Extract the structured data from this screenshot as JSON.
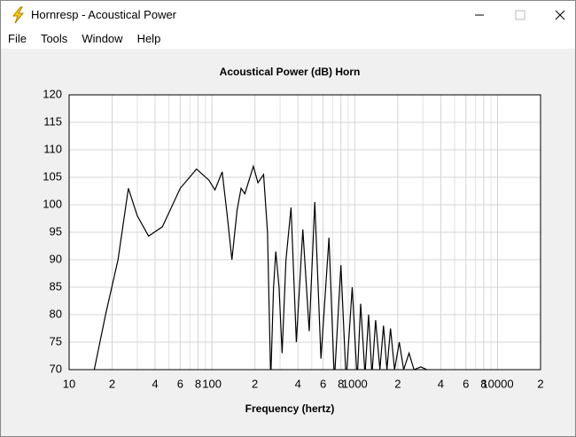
{
  "window": {
    "title": "Hornresp - Acoustical Power",
    "menu": [
      "File",
      "Tools",
      "Window",
      "Help"
    ]
  },
  "chart_data": {
    "type": "line",
    "title": "Acoustical Power (dB)    Horn",
    "xlabel": "Frequency (hertz)",
    "log_x": true,
    "grid": true,
    "x": [
      15,
      18,
      22,
      26,
      30,
      36,
      45,
      60,
      78,
      95,
      105,
      118,
      128,
      138,
      150,
      160,
      170,
      195,
      210,
      230,
      245,
      258,
      270,
      280,
      295,
      310,
      330,
      358,
      390,
      433,
      480,
      525,
      580,
      660,
      720,
      800,
      870,
      960,
      1040,
      1100,
      1180,
      1250,
      1320,
      1400,
      1500,
      1590,
      1680,
      1780,
      1900,
      2050,
      2200,
      2400,
      2600,
      2900,
      3200
    ],
    "series": [
      {
        "name": "Horn",
        "color": "#000000",
        "values": [
          70,
          80,
          90,
          103,
          98,
          94.3,
          96,
          103,
          106.5,
          104.5,
          102.7,
          106,
          98,
          90,
          99,
          103,
          102,
          107,
          104,
          105.5,
          95,
          68,
          85,
          91.5,
          85,
          73,
          90,
          99.5,
          75,
          95.5,
          77,
          100.5,
          72,
          94,
          68,
          89,
          68,
          85,
          68,
          82,
          69,
          80,
          69,
          79,
          70,
          78,
          70,
          77.5,
          70,
          75,
          70,
          73,
          70,
          70.5,
          70
        ]
      }
    ],
    "xlim": [
      10,
      20000
    ],
    "ylim": [
      70,
      120
    ],
    "xticks": [
      10,
      {
        "value": 20,
        "label": "2"
      },
      {
        "value": 40,
        "label": "4"
      },
      {
        "value": 60,
        "label": "6"
      },
      {
        "value": 80,
        "label": "8"
      },
      100,
      {
        "value": 200,
        "label": "2"
      },
      {
        "value": 400,
        "label": "4"
      },
      {
        "value": 600,
        "label": "6"
      },
      {
        "value": 800,
        "label": "8"
      },
      1000,
      {
        "value": 2000,
        "label": "2"
      },
      {
        "value": 4000,
        "label": "4"
      },
      {
        "value": 6000,
        "label": "6"
      },
      {
        "value": 8000,
        "label": "8"
      },
      10000,
      {
        "value": 20000,
        "label": "2"
      }
    ],
    "xminor": [
      30,
      50,
      70,
      90,
      300,
      500,
      700,
      900,
      3000,
      5000,
      7000,
      9000
    ],
    "yticks": [
      70,
      75,
      80,
      85,
      90,
      95,
      100,
      105,
      110,
      115,
      120
    ]
  }
}
